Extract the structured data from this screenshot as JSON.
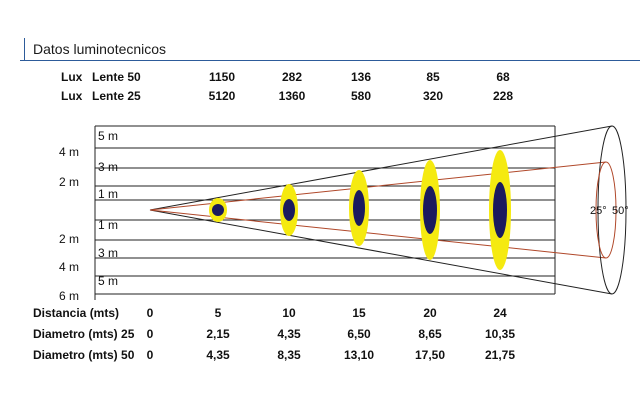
{
  "title": "Datos luminotecnicos",
  "lux": {
    "row1": {
      "prefix": "Lux",
      "label": "Lente 50",
      "values": [
        "1150",
        "282",
        "136",
        "85",
        "68"
      ]
    },
    "row2": {
      "prefix": "Lux",
      "label": "Lente 25",
      "values": [
        "5120",
        "1360",
        "580",
        "320",
        "228"
      ]
    }
  },
  "inner_axis": [
    "5 m",
    "3 m",
    "1 m",
    "1 m",
    "3 m",
    "5 m"
  ],
  "outer_axis": [
    "4 m",
    "2 m",
    "2 m",
    "4 m",
    "6 m"
  ],
  "rows": {
    "distancia": {
      "label": "Distancia (mts)",
      "values": [
        "0",
        "5",
        "10",
        "15",
        "20",
        "24"
      ]
    },
    "diam25": {
      "label": "Diametro (mts) 25",
      "values": [
        "0",
        "2,15",
        "4,35",
        "6,50",
        "8,65",
        "10,35"
      ]
    },
    "diam50": {
      "label": "Diametro (mts) 50",
      "values": [
        "0",
        "4,35",
        "8,35",
        "13,10",
        "17,50",
        "21,75"
      ]
    }
  },
  "angles": {
    "narrow": "25°",
    "wide": "50°"
  },
  "colors": {
    "spot_outer": "#f5ea10",
    "spot_inner": "#1b1b5e",
    "beam_narrow": "#b0482a",
    "rule": "#2d5b9a"
  }
}
